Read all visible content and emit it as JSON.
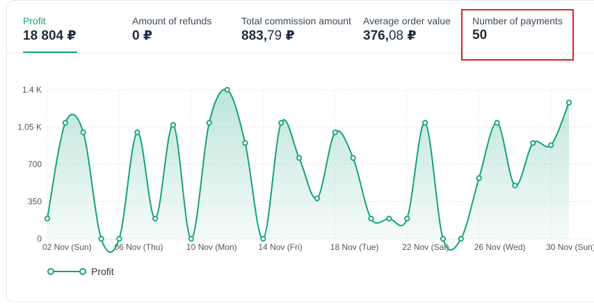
{
  "metrics": [
    {
      "label": "Profit",
      "value_int": "18 804",
      "value_dec": "",
      "currency": "₽",
      "active": true
    },
    {
      "label": "Amount of refunds",
      "value_int": "0",
      "value_dec": "",
      "currency": "₽",
      "active": false
    },
    {
      "label": "Total commission amount",
      "value_int": "883,",
      "value_dec": "79",
      "currency": "₽",
      "active": false
    },
    {
      "label": "Average order value",
      "value_int": "376,",
      "value_dec": "08",
      "currency": "₽",
      "active": false
    },
    {
      "label": "Number of payments",
      "value_int": "50",
      "value_dec": "",
      "currency": "",
      "active": false
    }
  ],
  "colors": {
    "accent": "#14a07c",
    "highlight": "#e02020"
  },
  "chart_data": {
    "type": "area",
    "title": "",
    "xlabel": "",
    "ylabel": "",
    "ylim": [
      0,
      1400
    ],
    "yticks": [
      0,
      350,
      700,
      1050,
      1400
    ],
    "ytick_labels": [
      "0",
      "350",
      "700",
      "1.05 K",
      "1.4 K"
    ],
    "x_tick_labels": [
      "02 Nov (Sun)",
      "06 Nov (Thu)",
      "10 Nov (Mon)",
      "14 Nov (Fri)",
      "18 Nov (Tue)",
      "22 Nov (Sat)",
      "26 Nov (Wed)",
      "30 Nov (Sun)"
    ],
    "x_tick_every": 4,
    "series": [
      {
        "name": "Profit",
        "values": [
          190,
          1090,
          1000,
          0,
          0,
          1000,
          190,
          1070,
          0,
          1090,
          1400,
          900,
          0,
          1090,
          760,
          380,
          1000,
          760,
          190,
          190,
          190,
          1090,
          0,
          0,
          570,
          1090,
          500,
          900,
          880,
          1280
        ]
      }
    ],
    "legend": {
      "label": "Profit",
      "position": "bottom-left"
    }
  }
}
